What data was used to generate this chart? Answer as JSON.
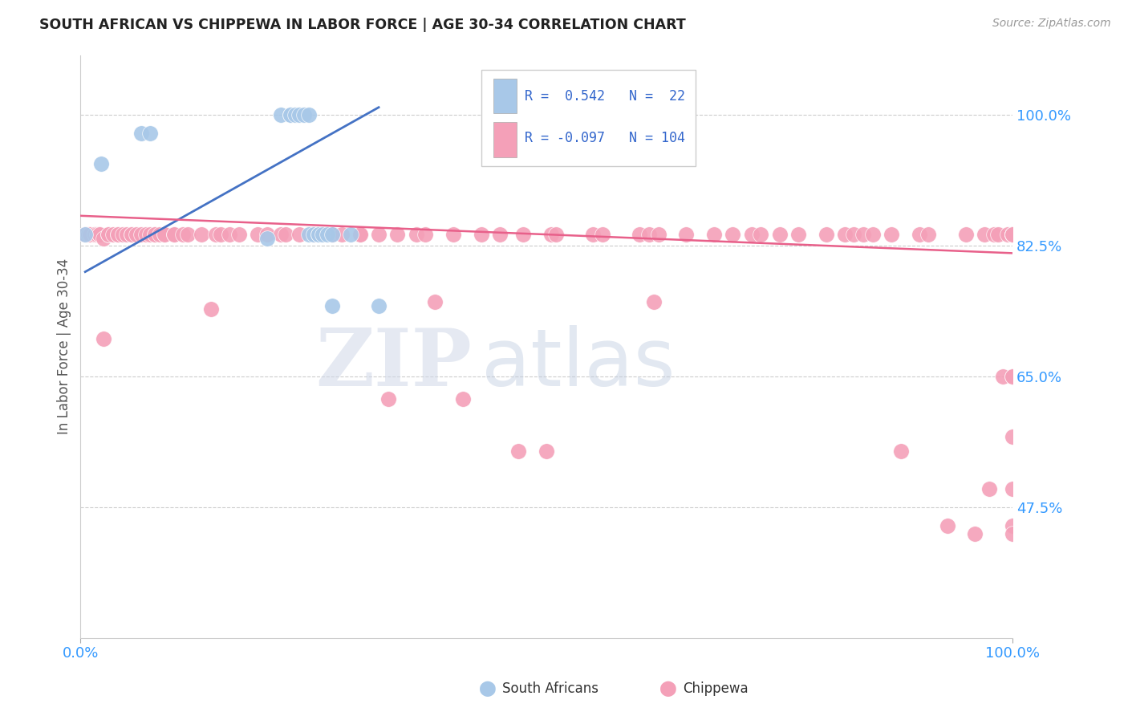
{
  "title": "SOUTH AFRICAN VS CHIPPEWA IN LABOR FORCE | AGE 30-34 CORRELATION CHART",
  "source": "Source: ZipAtlas.com",
  "ylabel": "In Labor Force | Age 30-34",
  "xlim": [
    0,
    1.0
  ],
  "ylim": [
    0.3,
    1.08
  ],
  "yticks": [
    0.475,
    0.65,
    0.825,
    1.0
  ],
  "ytick_labels": [
    "47.5%",
    "65.0%",
    "82.5%",
    "100.0%"
  ],
  "xtick_labels": [
    "0.0%",
    "100.0%"
  ],
  "xticks": [
    0.0,
    1.0
  ],
  "legend_labels": [
    "South Africans",
    "Chippewa"
  ],
  "blue_color": "#A8C8E8",
  "pink_color": "#F4A0B8",
  "blue_line_color": "#4472C4",
  "pink_line_color": "#E8608A",
  "r_blue": 0.542,
  "n_blue": 22,
  "r_pink": -0.097,
  "n_pink": 104,
  "watermark_zip": "ZIP",
  "watermark_atlas": "atlas",
  "blue_x": [
    0.005,
    0.022,
    0.065,
    0.075,
    0.2,
    0.215,
    0.225,
    0.225,
    0.23,
    0.235,
    0.24,
    0.245,
    0.245,
    0.25,
    0.255,
    0.255,
    0.26,
    0.265,
    0.27,
    0.27,
    0.29,
    0.32
  ],
  "blue_y": [
    0.84,
    0.935,
    0.975,
    0.975,
    0.835,
    1.0,
    1.0,
    1.0,
    1.0,
    1.0,
    1.0,
    1.0,
    0.84,
    0.84,
    0.84,
    0.84,
    0.84,
    0.84,
    0.84,
    0.745,
    0.84,
    0.745
  ],
  "pink_x": [
    0.005,
    0.008,
    0.01,
    0.015,
    0.018,
    0.02,
    0.02,
    0.025,
    0.025,
    0.03,
    0.03,
    0.035,
    0.04,
    0.04,
    0.045,
    0.05,
    0.055,
    0.055,
    0.06,
    0.065,
    0.07,
    0.075,
    0.08,
    0.08,
    0.085,
    0.09,
    0.09,
    0.1,
    0.1,
    0.11,
    0.115,
    0.13,
    0.14,
    0.145,
    0.15,
    0.16,
    0.17,
    0.19,
    0.2,
    0.215,
    0.22,
    0.235,
    0.25,
    0.27,
    0.28,
    0.3,
    0.3,
    0.32,
    0.33,
    0.34,
    0.36,
    0.37,
    0.38,
    0.4,
    0.41,
    0.43,
    0.45,
    0.47,
    0.475,
    0.5,
    0.505,
    0.51,
    0.55,
    0.56,
    0.6,
    0.61,
    0.615,
    0.62,
    0.65,
    0.68,
    0.7,
    0.72,
    0.73,
    0.75,
    0.77,
    0.8,
    0.82,
    0.83,
    0.84,
    0.85,
    0.87,
    0.88,
    0.9,
    0.91,
    0.93,
    0.95,
    0.96,
    0.97,
    0.975,
    0.98,
    0.985,
    0.99,
    0.995,
    1.0,
    1.0,
    1.0,
    1.0,
    1.0,
    1.0,
    1.0,
    1.0,
    1.0,
    1.0,
    1.0
  ],
  "pink_y": [
    0.84,
    0.84,
    0.84,
    0.84,
    0.84,
    0.84,
    0.84,
    0.835,
    0.7,
    0.84,
    0.84,
    0.84,
    0.84,
    0.84,
    0.84,
    0.84,
    0.84,
    0.84,
    0.84,
    0.84,
    0.84,
    0.84,
    0.84,
    0.84,
    0.84,
    0.84,
    0.84,
    0.84,
    0.84,
    0.84,
    0.84,
    0.84,
    0.74,
    0.84,
    0.84,
    0.84,
    0.84,
    0.84,
    0.84,
    0.84,
    0.84,
    0.84,
    0.84,
    0.84,
    0.84,
    0.84,
    0.84,
    0.84,
    0.62,
    0.84,
    0.84,
    0.84,
    0.75,
    0.84,
    0.62,
    0.84,
    0.84,
    0.55,
    0.84,
    0.55,
    0.84,
    0.84,
    0.84,
    0.84,
    0.84,
    0.84,
    0.75,
    0.84,
    0.84,
    0.84,
    0.84,
    0.84,
    0.84,
    0.84,
    0.84,
    0.84,
    0.84,
    0.84,
    0.84,
    0.84,
    0.84,
    0.55,
    0.84,
    0.84,
    0.45,
    0.84,
    0.44,
    0.84,
    0.5,
    0.84,
    0.84,
    0.65,
    0.84,
    0.84,
    0.57,
    0.84,
    0.65,
    0.84,
    0.45,
    0.84,
    0.65,
    0.5,
    0.84,
    0.44
  ],
  "blue_line_x": [
    0.005,
    0.32
  ],
  "blue_line_y": [
    0.79,
    1.01
  ],
  "pink_line_x": [
    0.0,
    1.0
  ],
  "pink_line_y": [
    0.865,
    0.815
  ]
}
